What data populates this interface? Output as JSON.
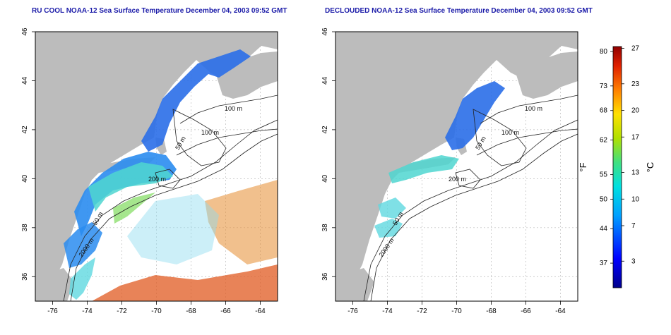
{
  "panels": [
    {
      "title": "RU COOL NOAA-12 Sea Surface Temperature December 04, 2003 09:52 GMT",
      "contour_labels": [
        "100 m",
        "100 m",
        "50 m",
        "200 m",
        "50 m",
        "2000 m"
      ]
    },
    {
      "title": "DECLOUDED NOAA-12 Sea Surface Temperature December 04, 2003 09:52 GMT",
      "contour_labels": [
        "100 m",
        "100 m",
        "50 m",
        "200 m",
        "50 m",
        "2000 m"
      ]
    }
  ],
  "axes": {
    "lon_ticks": [
      "-76",
      "-74",
      "-72",
      "-70",
      "-68",
      "-66",
      "-64"
    ],
    "lat_ticks": [
      "36",
      "38",
      "40",
      "42",
      "44",
      "46"
    ]
  },
  "colorbar": {
    "f_label": "°F",
    "c_label": "°C",
    "f_ticks": [
      "80",
      "73",
      "68",
      "62",
      "55",
      "50",
      "44",
      "37"
    ],
    "c_ticks": [
      "27",
      "23",
      "20",
      "17",
      "13",
      "10",
      "7",
      "3"
    ]
  },
  "colors": {
    "land": "#bcbcbc",
    "title": "#1a1aa8",
    "cold": "#1a3ccc",
    "warm": "#d23a10"
  }
}
